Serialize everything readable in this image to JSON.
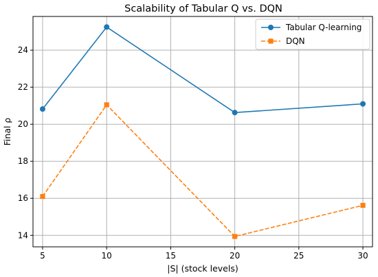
{
  "chart_data": {
    "type": "line",
    "title": "Scalability of Tabular Q vs. DQN",
    "xlabel": "|S| (stock levels)",
    "ylabel": "Final ρ",
    "x": [
      5,
      10,
      20,
      30
    ],
    "xlim": [
      4.25,
      30.75
    ],
    "ylim": [
      13.38,
      25.82
    ],
    "xticks": [
      5,
      10,
      15,
      20,
      25,
      30
    ],
    "yticks": [
      14,
      16,
      18,
      20,
      22,
      24
    ],
    "grid": true,
    "legend_position": "top-right",
    "series": [
      {
        "name": "Tabular Q-learning",
        "values": [
          20.82,
          25.25,
          20.63,
          21.1
        ],
        "color": "#1f77b4",
        "marker": "circle",
        "linestyle": "solid"
      },
      {
        "name": "DQN",
        "values": [
          16.1,
          21.05,
          13.94,
          15.62
        ],
        "color": "#ff7f0e",
        "marker": "square",
        "linestyle": "dashed"
      }
    ]
  }
}
